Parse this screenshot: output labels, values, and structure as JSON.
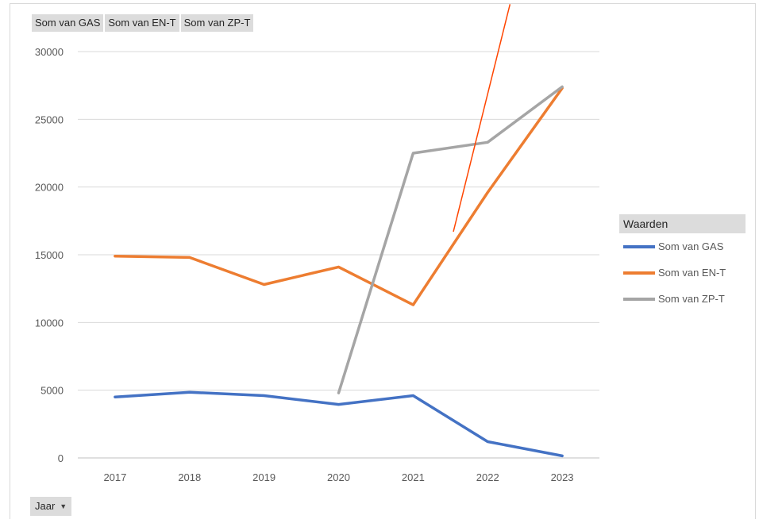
{
  "field_buttons": [
    "Som van GAS",
    "Som van EN-T",
    "Som van ZP-T"
  ],
  "legend": {
    "header": "Waarden"
  },
  "axis_button": {
    "label": "Jaar",
    "icon": "chevron-down-icon"
  },
  "chart_data": {
    "type": "line",
    "categories": [
      "2017",
      "2018",
      "2019",
      "2020",
      "2021",
      "2022",
      "2023"
    ],
    "ylim": [
      0,
      30000
    ],
    "yticks": [
      0,
      5000,
      10000,
      15000,
      20000,
      25000,
      30000
    ],
    "grid": true,
    "legend_position": "right",
    "series": [
      {
        "name": "Som van GAS",
        "color": "#4472c4",
        "values": [
          4500,
          4850,
          4600,
          3950,
          4600,
          1200,
          150
        ]
      },
      {
        "name": "Som van EN-T",
        "color": "#ed7d31",
        "values": [
          14900,
          14800,
          12800,
          14100,
          11300,
          19600,
          27300
        ]
      },
      {
        "name": "Som van ZP-T",
        "color": "#a5a5a5",
        "values": [
          null,
          null,
          null,
          4800,
          22500,
          23300,
          27400
        ]
      }
    ],
    "annotations": [
      {
        "type": "line",
        "color": "#ff4500",
        "from": {
          "x": 2021.54,
          "y": 16700
        },
        "to": {
          "x": 2022.3,
          "y": 33500
        }
      }
    ]
  }
}
